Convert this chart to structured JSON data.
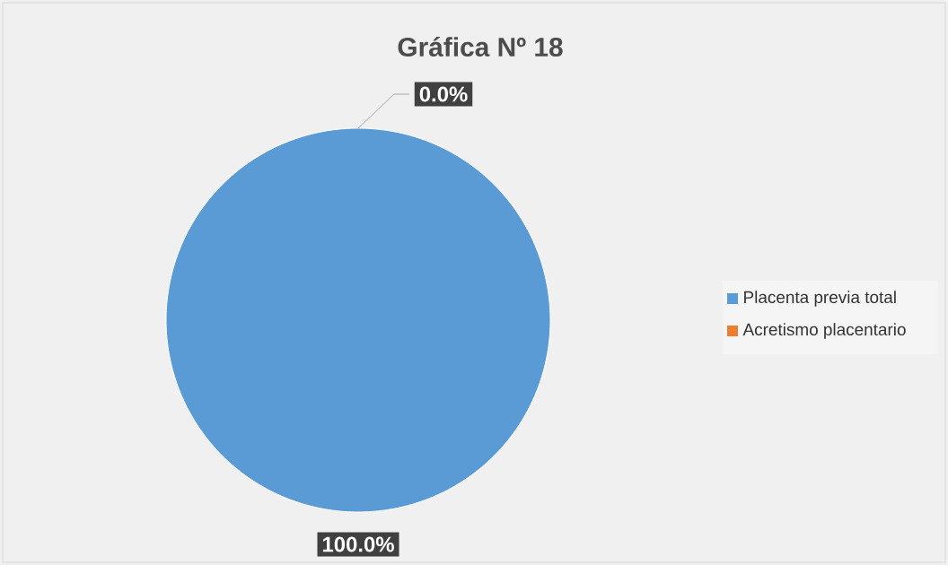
{
  "chart_data": {
    "type": "pie",
    "title": "Gráfica Nº 18",
    "categories": [
      "Placenta previa total",
      "Acretismo placentario"
    ],
    "values": [
      100,
      0
    ],
    "colors": [
      "#5b9bd5",
      "#ed7d31"
    ],
    "value_labels": [
      "100.0%",
      "0.0%"
    ],
    "legend": "right"
  }
}
